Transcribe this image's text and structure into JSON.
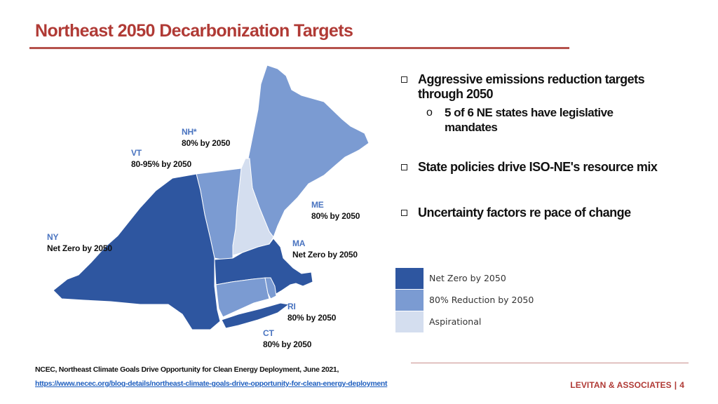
{
  "title": "Northeast 2050 Decarbonization Targets",
  "colors": {
    "title": "#b03a35",
    "net_zero": "#2e56a0",
    "eighty_pct": "#7b9bd2",
    "aspirational": "#d4deef"
  },
  "map": {
    "states": [
      {
        "abbr": "NY",
        "target": "Net Zero by 2050",
        "category": "Net Zero by 2050"
      },
      {
        "abbr": "VT",
        "target": "80-95% by 2050",
        "category": "80% Reduction by 2050"
      },
      {
        "abbr": "NH*",
        "target": "80% by 2050",
        "category": "Aspirational"
      },
      {
        "abbr": "ME",
        "target": "80% by 2050",
        "category": "80% Reduction by 2050"
      },
      {
        "abbr": "MA",
        "target": "Net Zero by 2050",
        "category": "Net Zero by 2050"
      },
      {
        "abbr": "RI",
        "target": "80% by 2050",
        "category": "80% Reduction by 2050"
      },
      {
        "abbr": "CT",
        "target": "80% by 2050",
        "category": "80% Reduction by 2050"
      }
    ]
  },
  "bullets": [
    {
      "text": "Aggressive emissions reduction targets through 2050",
      "subs": [
        {
          "marker": "o",
          "text": "5 of 6 NE states have legislative mandates"
        }
      ]
    },
    {
      "text": "State policies drive ISO-NE's resource mix",
      "subs": []
    },
    {
      "text": "Uncertainty factors re pace of change",
      "subs": []
    }
  ],
  "legend": [
    {
      "label": "Net Zero by 2050",
      "color": "#2e56a0"
    },
    {
      "label": "80% Reduction by 2050",
      "color": "#7b9bd2"
    },
    {
      "label": "Aspirational",
      "color": "#d4deef"
    }
  ],
  "source": {
    "text": "NCEC, Northeast Climate Goals Drive Opportunity for Clean Energy Deployment, June 2021,",
    "link": "https://www.necec.org/blog-details/northeast-climate-goals-drive-opportunity-for-clean-energy-deployment"
  },
  "footer": {
    "company": "LEVITAN & ASSOCIATES",
    "separator": "|",
    "page": "4"
  }
}
